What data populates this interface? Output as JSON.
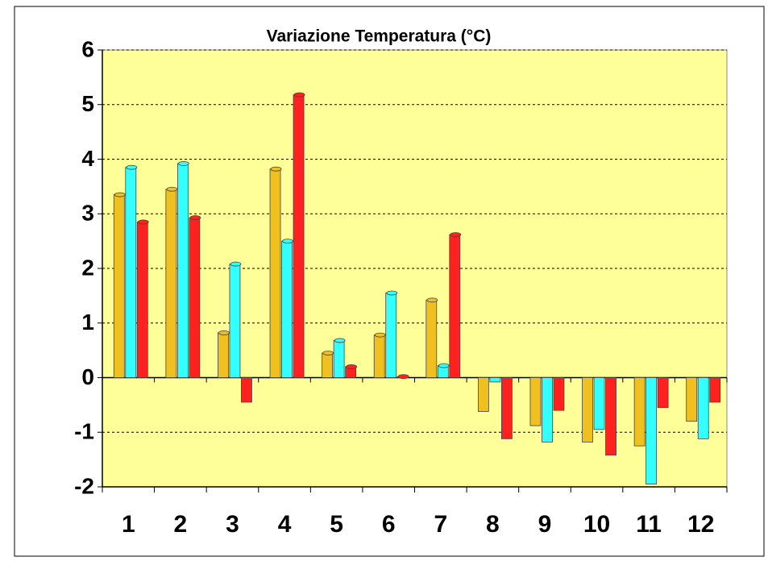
{
  "chart_data": {
    "type": "bar",
    "title": "Variazione Temperatura (°C)",
    "categories": [
      "1",
      "2",
      "3",
      "4",
      "5",
      "6",
      "7",
      "8",
      "9",
      "10",
      "11",
      "12"
    ],
    "series": [
      {
        "color": "#f0c020",
        "values": [
          3.35,
          3.45,
          0.82,
          3.82,
          0.45,
          0.78,
          1.42,
          -0.62,
          -0.88,
          -1.18,
          -1.25,
          -0.8
        ]
      },
      {
        "color": "#33ffff",
        "values": [
          3.85,
          3.92,
          2.08,
          2.5,
          0.68,
          1.55,
          0.22,
          -0.08,
          -1.18,
          -0.95,
          -1.95,
          -1.12
        ]
      },
      {
        "color": "#ff2020",
        "values": [
          2.85,
          2.93,
          -0.45,
          5.18,
          0.2,
          0.02,
          2.62,
          -1.12,
          -0.6,
          -1.42,
          -0.55,
          -0.45
        ]
      }
    ],
    "ylim": [
      -2,
      6
    ],
    "yticks": [
      -2,
      -1,
      0,
      1,
      2,
      3,
      4,
      5,
      6
    ],
    "grid": true,
    "plot_color": "#ffff99"
  }
}
